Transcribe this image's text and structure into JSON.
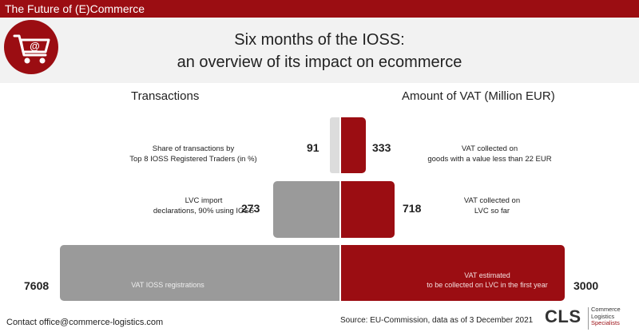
{
  "header": {
    "tag": "The Future of (E)Commerce",
    "title_line1": "Six months of the IOSS:",
    "title_line2": "an overview of its impact on ecommerce"
  },
  "logo": {
    "icon": "shopping-cart-at-icon",
    "symbol": "@"
  },
  "colors": {
    "brand_red": "#9b0d12",
    "grey_bar": "#9a9a9a",
    "light_grey_bar": "#dcdcdc"
  },
  "chart_data": {
    "type": "bar",
    "orientation": "horizontal",
    "layout": "back-to-back pyramid",
    "left": {
      "title": "Transactions",
      "rows": [
        {
          "label": "Share of transactions by\nTop 8 IOSS Registered Traders (in %)",
          "value": 91
        },
        {
          "label": "LVC import\ndeclarations, 90% using IOSS",
          "value": 273
        },
        {
          "label": "VAT IOSS registrations",
          "value": 7608
        }
      ]
    },
    "right": {
      "title": "Amount of VAT (Million EUR)",
      "rows": [
        {
          "label": "VAT collected on\ngoods with a value less than 22 EUR",
          "value": 333
        },
        {
          "label": "VAT collected on\nLVC so far",
          "value": 718
        },
        {
          "label": "VAT estimated\nto be collected on LVC in the first year",
          "value": 3000
        }
      ]
    }
  },
  "footer": {
    "contact": "Contact office@commerce-logistics.com",
    "source": "Source: EU-Commission, data as of 3 December 2021",
    "brand_short": "CLS",
    "brand_line1": "Commerce",
    "brand_line2": "Logistics",
    "brand_line3": "Specialists"
  }
}
